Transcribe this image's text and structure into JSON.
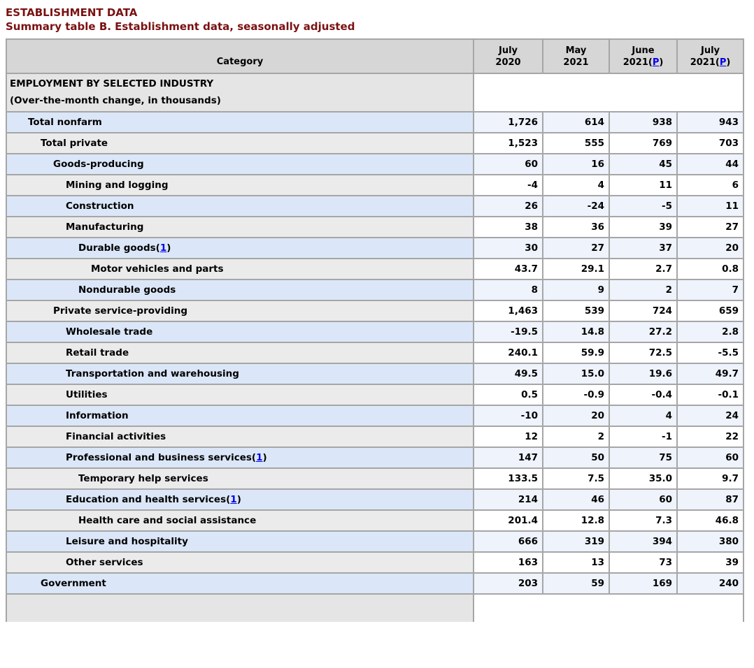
{
  "page": {
    "kicker": "ESTABLISHMENT DATA",
    "title": "Summary table B. Establishment data, seasonally adjusted"
  },
  "colors": {
    "heading_maroon": "#7a1111",
    "link_blue": "#0000ee",
    "header_gray": "#d6d6d6",
    "section_gray": "#e5e5e5",
    "row_blue_category": "#dbe7f8",
    "row_blue_value": "#eef3fc",
    "row_gray_category": "#ebebeb",
    "row_white_value": "#ffffff",
    "border_gray": "#a6a6a6"
  },
  "table": {
    "category_header": "Category",
    "preliminary_label": "P",
    "footnote_label": "1",
    "col_headers": [
      {
        "month": "July",
        "year": "2020",
        "preliminary": false
      },
      {
        "month": "May",
        "year": "2021",
        "preliminary": false
      },
      {
        "month": "June",
        "year": "2021",
        "preliminary": true
      },
      {
        "month": "July",
        "year": "2021",
        "preliminary": true
      }
    ],
    "section": {
      "line1": "EMPLOYMENT BY SELECTED INDUSTRY",
      "line2": "(Over-the-month change, in thousands)"
    },
    "rows": [
      {
        "label": "Total nonfarm",
        "indent": 1,
        "footnote": false,
        "values": [
          "1,726",
          "614",
          "938",
          "943"
        ]
      },
      {
        "label": "Total private",
        "indent": 2,
        "footnote": false,
        "values": [
          "1,523",
          "555",
          "769",
          "703"
        ]
      },
      {
        "label": "Goods-producing",
        "indent": 3,
        "footnote": false,
        "values": [
          "60",
          "16",
          "45",
          "44"
        ]
      },
      {
        "label": "Mining and logging",
        "indent": 4,
        "footnote": false,
        "values": [
          "-4",
          "4",
          "11",
          "6"
        ]
      },
      {
        "label": "Construction",
        "indent": 4,
        "footnote": false,
        "values": [
          "26",
          "-24",
          "-5",
          "11"
        ]
      },
      {
        "label": "Manufacturing",
        "indent": 4,
        "footnote": false,
        "values": [
          "38",
          "36",
          "39",
          "27"
        ]
      },
      {
        "label": "Durable goods",
        "indent": 5,
        "footnote": true,
        "values": [
          "30",
          "27",
          "37",
          "20"
        ]
      },
      {
        "label": "Motor vehicles and parts",
        "indent": 6,
        "footnote": false,
        "values": [
          "43.7",
          "29.1",
          "2.7",
          "0.8"
        ]
      },
      {
        "label": "Nondurable goods",
        "indent": 5,
        "footnote": false,
        "values": [
          "8",
          "9",
          "2",
          "7"
        ]
      },
      {
        "label": "Private service-providing",
        "indent": 3,
        "footnote": false,
        "values": [
          "1,463",
          "539",
          "724",
          "659"
        ]
      },
      {
        "label": "Wholesale trade",
        "indent": 4,
        "footnote": false,
        "values": [
          "-19.5",
          "14.8",
          "27.2",
          "2.8"
        ]
      },
      {
        "label": "Retail trade",
        "indent": 4,
        "footnote": false,
        "values": [
          "240.1",
          "59.9",
          "72.5",
          "-5.5"
        ]
      },
      {
        "label": "Transportation and warehousing",
        "indent": 4,
        "footnote": false,
        "values": [
          "49.5",
          "15.0",
          "19.6",
          "49.7"
        ]
      },
      {
        "label": "Utilities",
        "indent": 4,
        "footnote": false,
        "values": [
          "0.5",
          "-0.9",
          "-0.4",
          "-0.1"
        ]
      },
      {
        "label": "Information",
        "indent": 4,
        "footnote": false,
        "values": [
          "-10",
          "20",
          "4",
          "24"
        ]
      },
      {
        "label": "Financial activities",
        "indent": 4,
        "footnote": false,
        "values": [
          "12",
          "2",
          "-1",
          "22"
        ]
      },
      {
        "label": "Professional and business services",
        "indent": 4,
        "footnote": true,
        "values": [
          "147",
          "50",
          "75",
          "60"
        ]
      },
      {
        "label": "Temporary help services",
        "indent": 5,
        "footnote": false,
        "values": [
          "133.5",
          "7.5",
          "35.0",
          "9.7"
        ]
      },
      {
        "label": "Education and health services",
        "indent": 4,
        "footnote": true,
        "values": [
          "214",
          "46",
          "60",
          "87"
        ]
      },
      {
        "label": "Health care and social assistance",
        "indent": 5,
        "footnote": false,
        "values": [
          "201.4",
          "12.8",
          "7.3",
          "46.8"
        ]
      },
      {
        "label": "Leisure and hospitality",
        "indent": 4,
        "footnote": false,
        "values": [
          "666",
          "319",
          "394",
          "380"
        ]
      },
      {
        "label": "Other services",
        "indent": 4,
        "footnote": false,
        "values": [
          "163",
          "13",
          "73",
          "39"
        ]
      },
      {
        "label": "Government",
        "indent": 2,
        "footnote": false,
        "values": [
          "203",
          "59",
          "169",
          "240"
        ]
      }
    ]
  }
}
